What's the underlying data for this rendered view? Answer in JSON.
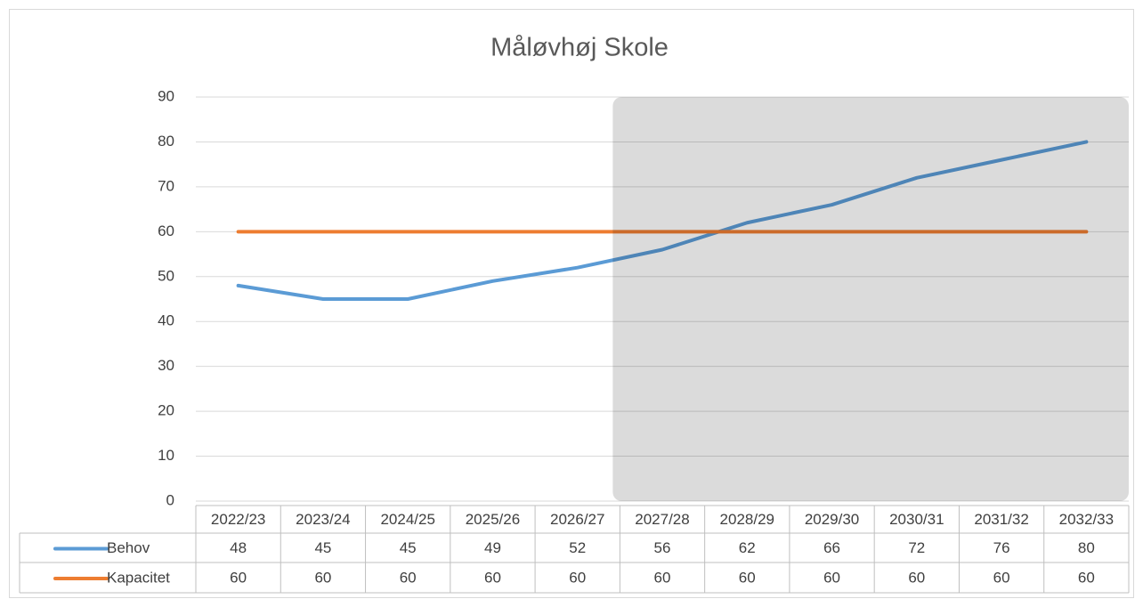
{
  "chart_data": {
    "type": "line",
    "title": "Måløvhøj Skole",
    "categories": [
      "2022/23",
      "2023/24",
      "2024/25",
      "2025/26",
      "2026/27",
      "2027/28",
      "2028/29",
      "2029/30",
      "2030/31",
      "2031/32",
      "2032/33"
    ],
    "series": [
      {
        "name": "Behov",
        "color": "#5b9bd5",
        "values": [
          48,
          45,
          45,
          49,
          52,
          56,
          62,
          66,
          72,
          76,
          80
        ]
      },
      {
        "name": "Kapacitet",
        "color": "#ed7d31",
        "values": [
          60,
          60,
          60,
          60,
          60,
          60,
          60,
          60,
          60,
          60,
          60
        ]
      }
    ],
    "ylim": [
      0,
      90
    ],
    "yticks": [
      0,
      10,
      20,
      30,
      40,
      50,
      60,
      70,
      80,
      90
    ],
    "grid": true,
    "data_table": true
  }
}
